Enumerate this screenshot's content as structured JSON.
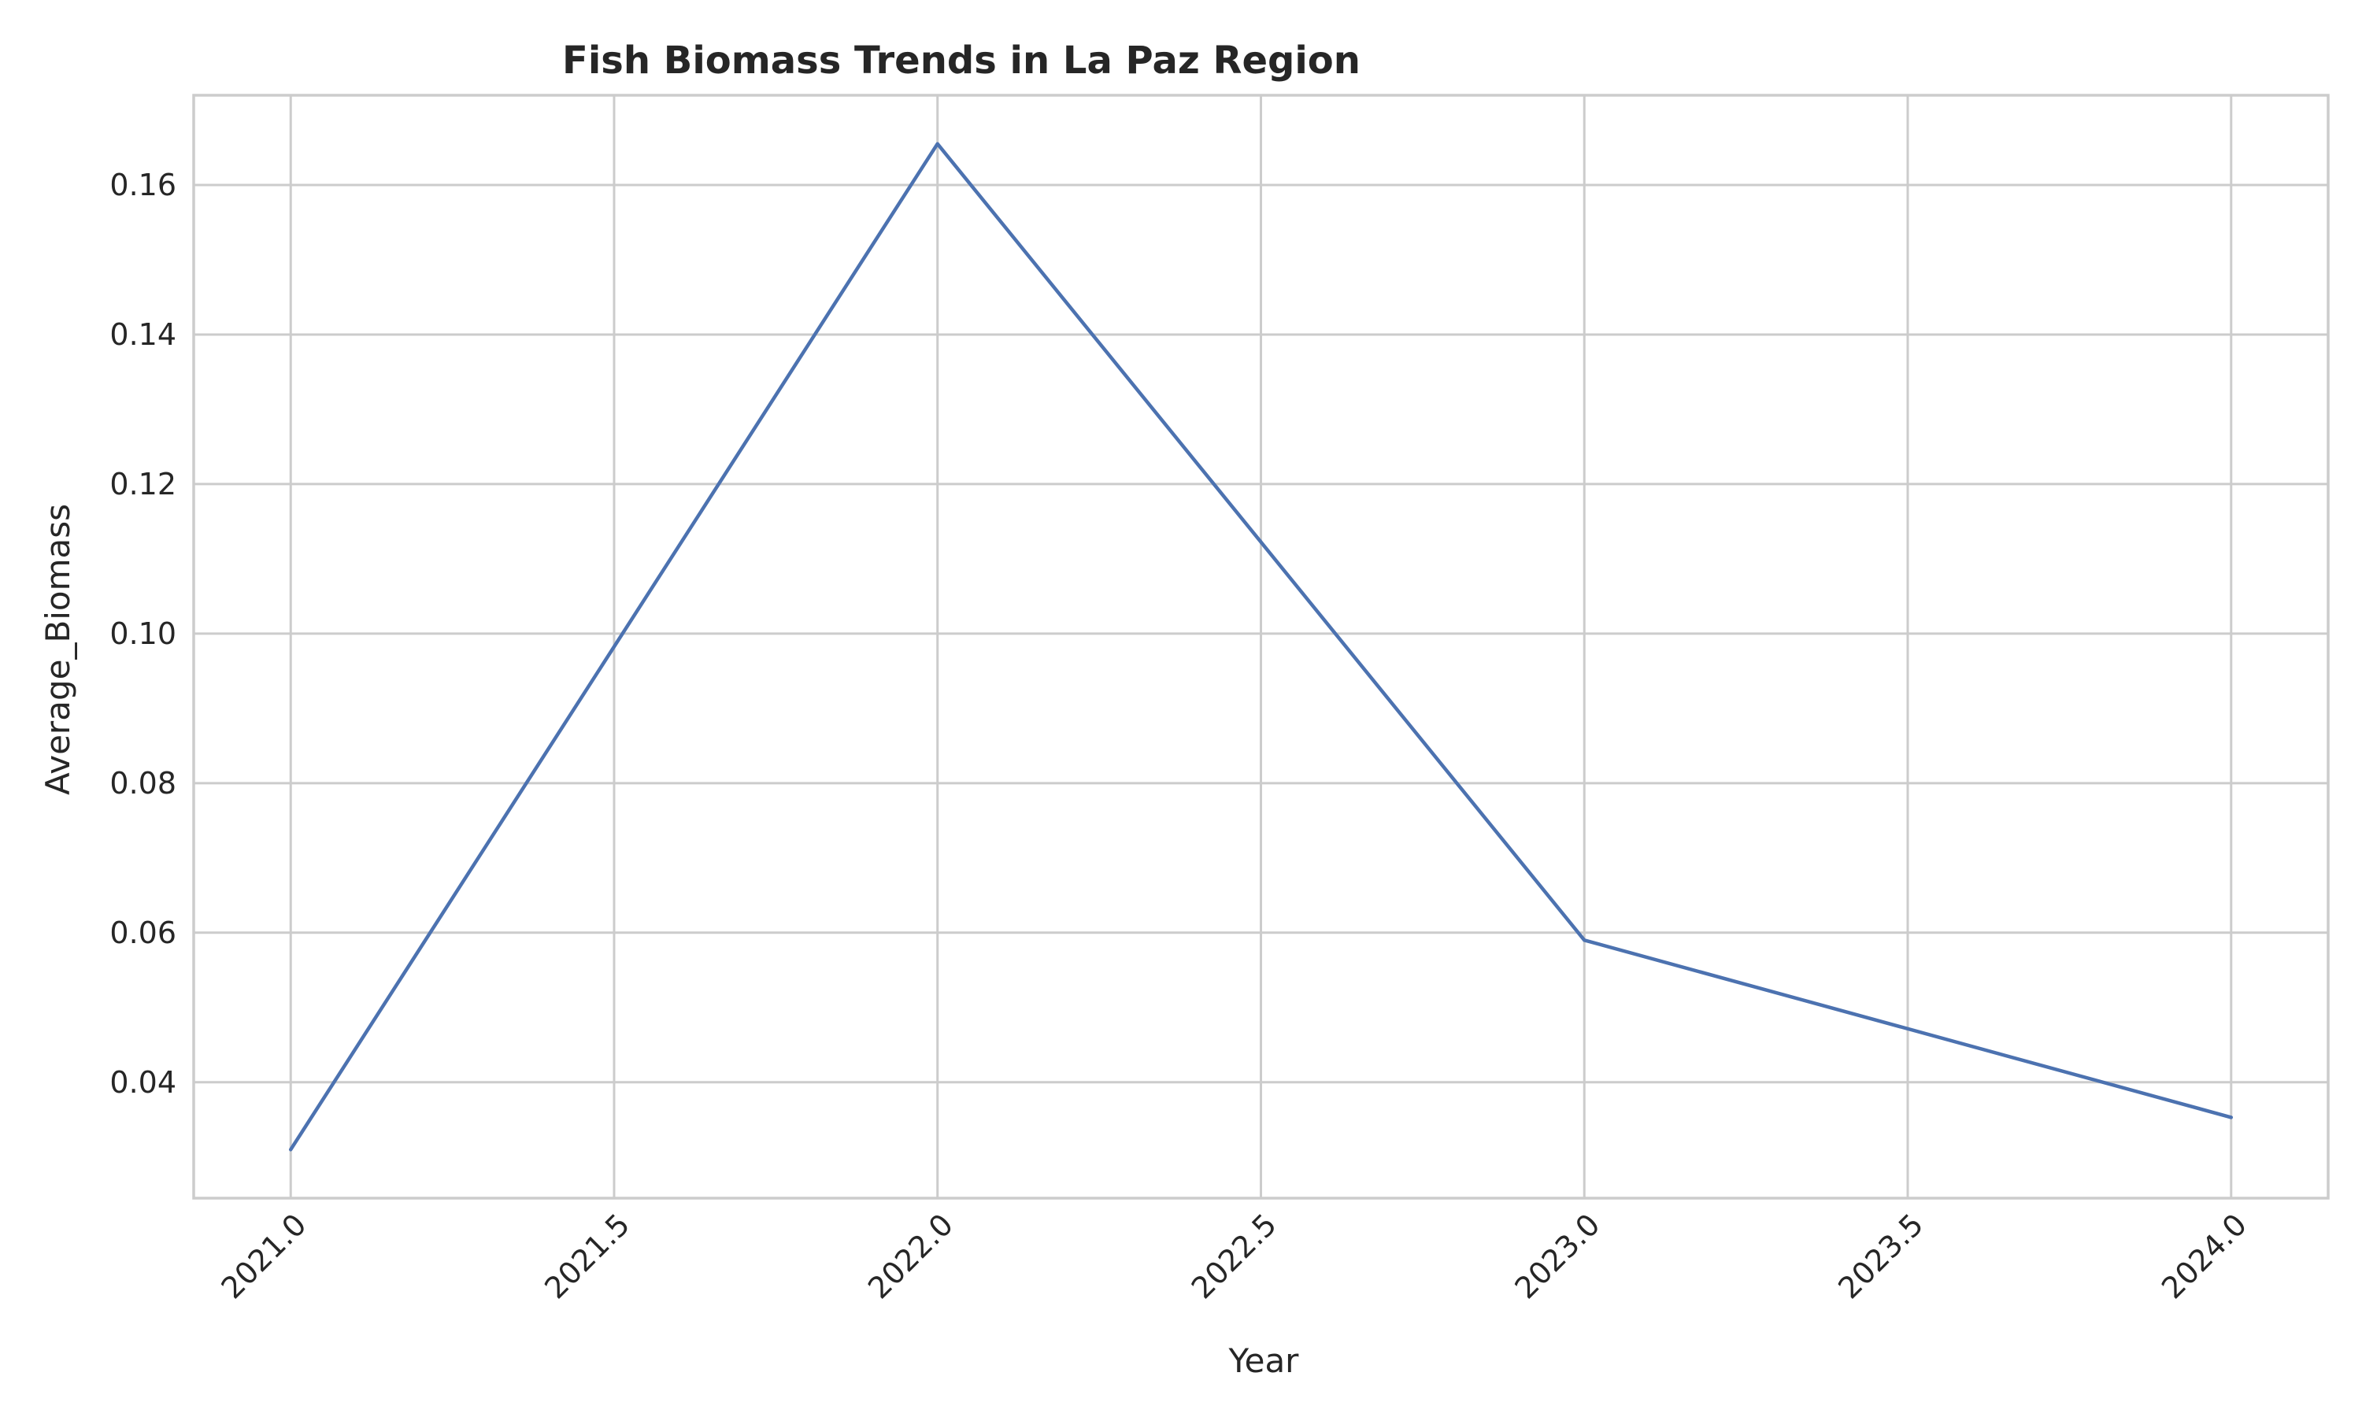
{
  "chart_data": {
    "type": "line",
    "title": "Fish Biomass Trends in La Paz Region",
    "xlabel": "Year",
    "ylabel": "Average_Biomass",
    "x": [
      2021,
      2022,
      2023,
      2024
    ],
    "series": [
      {
        "values": [
          0.031,
          0.1655,
          0.059,
          0.0353
        ],
        "color": "#4c72b0"
      }
    ],
    "xlim": [
      2020.85,
      2024.15
    ],
    "ylim": [
      0.0245,
      0.172
    ],
    "x_ticks": [
      "2021.0",
      "2021.5",
      "2022.0",
      "2022.5",
      "2023.0",
      "2023.5",
      "2024.0"
    ],
    "y_ticks": [
      "0.04",
      "0.06",
      "0.08",
      "0.10",
      "0.12",
      "0.14",
      "0.16"
    ],
    "x_tick_rotation": -45,
    "grid": true,
    "legend": "none"
  }
}
